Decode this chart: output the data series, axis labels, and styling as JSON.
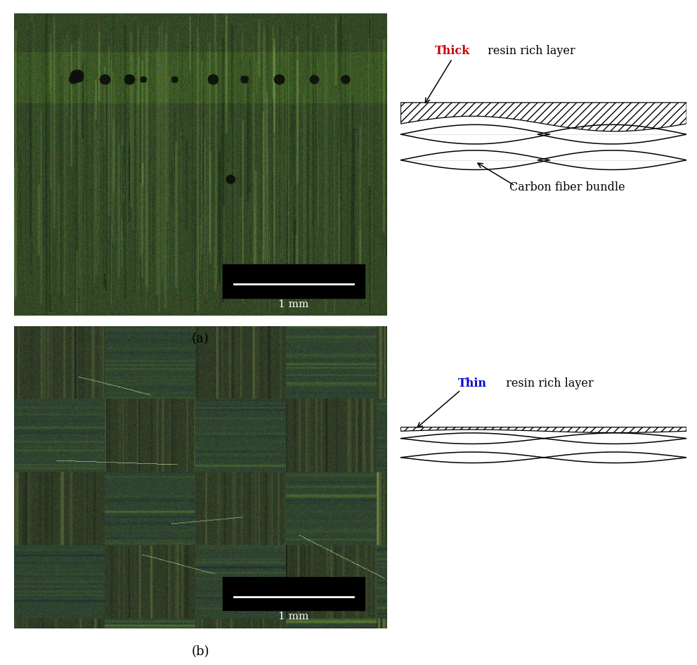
{
  "figure_width": 9.92,
  "figure_height": 9.46,
  "bg_color": "#ffffff",
  "label_a": "(a)",
  "label_b": "(b)",
  "thick_label_colored": "Thick",
  "thick_label_rest": " resin rich layer",
  "thick_color": "#cc0000",
  "thin_label_colored": "Thin",
  "thin_label_rest": " resin rich layer",
  "thin_color": "#0000cc",
  "carbon_label": "Carbon fiber bundle",
  "scalebar_text": "1 mm",
  "photo_a_base_r": [
    38,
    55
  ],
  "photo_a_base_g": [
    58,
    85
  ],
  "photo_a_base_b": [
    28,
    52
  ],
  "photo_b_base_r": [
    32,
    58
  ],
  "photo_b_base_g": [
    52,
    80
  ],
  "photo_b_base_b": [
    28,
    50
  ]
}
